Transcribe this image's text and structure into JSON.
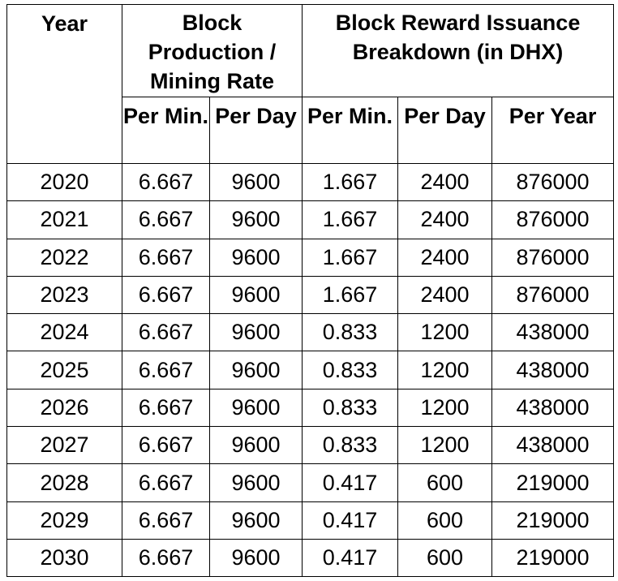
{
  "table": {
    "header": {
      "year": "Year",
      "group_mining": "Block Production / Mining Rate",
      "group_reward": "Block Reward Issuance Breakdown (in DHX)",
      "mining_per_min": "Per Min.",
      "mining_per_day": "Per Day",
      "reward_per_min": "Per Min.",
      "reward_per_day": "Per Day",
      "reward_per_year": "Per Year"
    },
    "rows": [
      {
        "year": "2020",
        "mining_per_min": "6.667",
        "mining_per_day": "9600",
        "reward_per_min": "1.667",
        "reward_per_day": "2400",
        "reward_per_year": "876000"
      },
      {
        "year": "2021",
        "mining_per_min": "6.667",
        "mining_per_day": "9600",
        "reward_per_min": "1.667",
        "reward_per_day": "2400",
        "reward_per_year": "876000"
      },
      {
        "year": "2022",
        "mining_per_min": "6.667",
        "mining_per_day": "9600",
        "reward_per_min": "1.667",
        "reward_per_day": "2400",
        "reward_per_year": "876000"
      },
      {
        "year": "2023",
        "mining_per_min": "6.667",
        "mining_per_day": "9600",
        "reward_per_min": "1.667",
        "reward_per_day": "2400",
        "reward_per_year": "876000"
      },
      {
        "year": "2024",
        "mining_per_min": "6.667",
        "mining_per_day": "9600",
        "reward_per_min": "0.833",
        "reward_per_day": "1200",
        "reward_per_year": "438000"
      },
      {
        "year": "2025",
        "mining_per_min": "6.667",
        "mining_per_day": "9600",
        "reward_per_min": "0.833",
        "reward_per_day": "1200",
        "reward_per_year": "438000"
      },
      {
        "year": "2026",
        "mining_per_min": "6.667",
        "mining_per_day": "9600",
        "reward_per_min": "0.833",
        "reward_per_day": "1200",
        "reward_per_year": "438000"
      },
      {
        "year": "2027",
        "mining_per_min": "6.667",
        "mining_per_day": "9600",
        "reward_per_min": "0.833",
        "reward_per_day": "1200",
        "reward_per_year": "438000"
      },
      {
        "year": "2028",
        "mining_per_min": "6.667",
        "mining_per_day": "9600",
        "reward_per_min": "0.417",
        "reward_per_day": "600",
        "reward_per_year": "219000"
      },
      {
        "year": "2029",
        "mining_per_min": "6.667",
        "mining_per_day": "9600",
        "reward_per_min": "0.417",
        "reward_per_day": "600",
        "reward_per_year": "219000"
      },
      {
        "year": "2030",
        "mining_per_min": "6.667",
        "mining_per_day": "9600",
        "reward_per_min": "0.417",
        "reward_per_day": "600",
        "reward_per_year": "219000"
      }
    ]
  }
}
